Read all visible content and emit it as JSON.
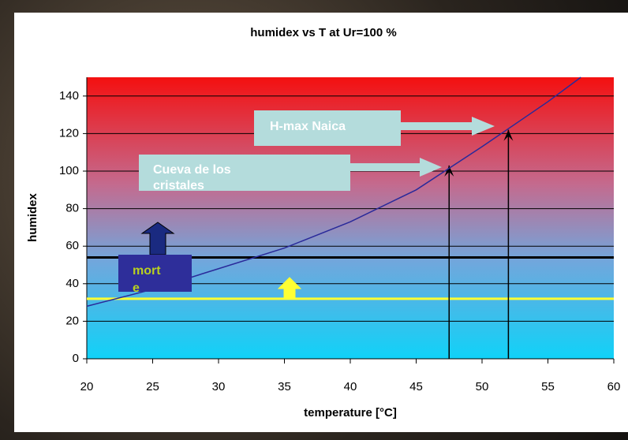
{
  "chart_data": {
    "type": "line",
    "title": "humidex vs T at Ur=100 %",
    "x_label": "temperature [°C]",
    "y_label": "humidex",
    "x": [
      20,
      25,
      30,
      35,
      40,
      45,
      50,
      55,
      57.5
    ],
    "series": [
      {
        "name": "humidex",
        "color": "#2a2a9a",
        "values": [
          28,
          37,
          48,
          59,
          73,
          90,
          113,
          137,
          150
        ]
      }
    ],
    "xlim": [
      20,
      60
    ],
    "xticks": [
      20,
      25,
      30,
      35,
      40,
      45,
      50,
      55,
      60
    ],
    "ylim": [
      0,
      150
    ],
    "yticks": [
      0,
      20,
      40,
      60,
      80,
      100,
      120,
      140
    ],
    "grid": true,
    "hlines": [
      {
        "value": 54,
        "color": "#000000"
      },
      {
        "value": 32,
        "color": "#ffff33"
      }
    ],
    "vlines": [
      {
        "x": 47.5,
        "top": 103
      },
      {
        "x": 52,
        "top": 122
      }
    ],
    "annotations": [
      "H-max Naica",
      "Cueva de los cristales",
      "morte"
    ]
  }
}
